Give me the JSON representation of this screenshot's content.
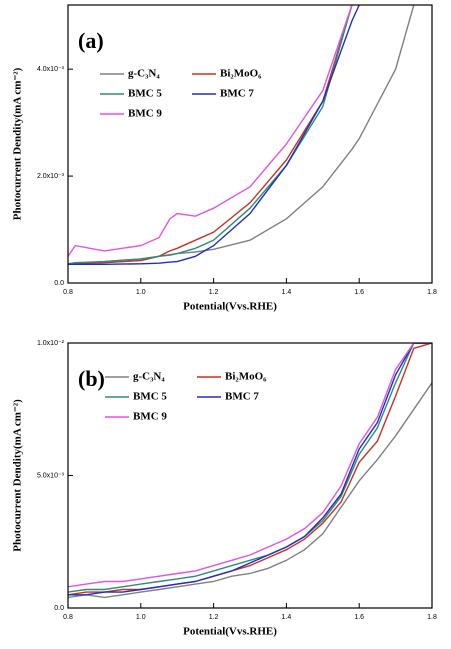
{
  "chart_data": [
    {
      "type": "line",
      "label": "(a)",
      "x_label": "Potential(Vvs.RHE)",
      "y_label": "Photocurrent Dendity(mA cm⁻²)",
      "xlim": [
        0.8,
        1.8
      ],
      "ylim": [
        0,
        0.0052
      ],
      "xticks": [
        0.8,
        {
          "value": 1,
          "label": "1.0"
        },
        1.2,
        1.4,
        1.6,
        1.8
      ],
      "yticks": [
        {
          "value": 0,
          "label": "0.0"
        },
        {
          "value": 0.002,
          "label": "2.0x10⁻³"
        },
        {
          "value": 0.004,
          "label": "4.0x10⁻³"
        }
      ],
      "x": [
        0.8,
        0.82,
        0.9,
        1.0,
        1.05,
        1.08,
        1.1,
        1.15,
        1.2,
        1.3,
        1.4,
        1.5,
        1.58,
        1.6,
        1.7,
        1.75
      ],
      "series": [
        {
          "name": "g-C₃N₄",
          "color": "#808080",
          "values": [
            0.00035,
            0.00036,
            0.0004,
            0.00045,
            0.0005,
            0.00052,
            0.00055,
            0.00058,
            0.00063,
            0.0008,
            0.0012,
            0.0018,
            0.0025,
            0.0027,
            0.004,
            0.0052
          ]
        },
        {
          "name": "Bi₂MoO₆",
          "color": "#c8321e",
          "values": [
            0.00035,
            0.00036,
            0.00038,
            0.00042,
            0.0005,
            0.0006,
            0.00065,
            0.0008,
            0.00095,
            0.0015,
            0.0023,
            0.0034,
            0.0052,
            null,
            null,
            null
          ]
        },
        {
          "name": "BMC 5",
          "color": "#2e8b7a",
          "values": [
            0.00036,
            0.00038,
            0.0004,
            0.00045,
            0.0005,
            0.00053,
            0.00055,
            0.00065,
            0.0008,
            0.0014,
            0.0022,
            0.0033,
            0.0052,
            null,
            null,
            null
          ]
        },
        {
          "name": "BMC 7",
          "color": "#1f2fbf",
          "values": [
            0.00035,
            0.00035,
            0.00035,
            0.00036,
            0.00037,
            0.00039,
            0.0004,
            0.0005,
            0.0007,
            0.0013,
            0.0022,
            0.0034,
            0.0049,
            0.0052,
            null,
            null
          ]
        },
        {
          "name": "BMC 9",
          "color": "#e055e0",
          "values": [
            0.0005,
            0.0007,
            0.0006,
            0.0007,
            0.00085,
            0.0012,
            0.0013,
            0.00125,
            0.0014,
            0.0018,
            0.0026,
            0.0036,
            0.0052,
            null,
            null,
            null
          ]
        }
      ]
    },
    {
      "type": "line",
      "label": "(b)",
      "x_label": "Potential(Vvs.RHE)",
      "y_label": "Photocurrent Dendity(mA cm⁻²)",
      "xlim": [
        0.8,
        1.8
      ],
      "ylim": [
        0,
        0.01
      ],
      "xticks": [
        0.8,
        {
          "value": 1,
          "label": "1.0"
        },
        1.2,
        1.4,
        1.6,
        1.8
      ],
      "yticks": [
        {
          "value": 0,
          "label": "0.0"
        },
        {
          "value": 0.005,
          "label": "5.0x10⁻³"
        },
        {
          "value": 0.01,
          "label": "1.0x10⁻²"
        }
      ],
      "x": [
        0.8,
        0.85,
        0.9,
        0.95,
        1.0,
        1.05,
        1.1,
        1.15,
        1.2,
        1.25,
        1.3,
        1.35,
        1.4,
        1.45,
        1.5,
        1.55,
        1.6,
        1.65,
        1.7,
        1.75,
        1.8
      ],
      "series": [
        {
          "name": "g-C₃N₄",
          "color": "#808080",
          "values": [
            0.0004,
            0.0005,
            0.0004,
            0.0005,
            0.0006,
            0.0007,
            0.0008,
            0.0009,
            0.001,
            0.0012,
            0.0013,
            0.0015,
            0.0018,
            0.0022,
            0.0028,
            0.0038,
            0.0048,
            0.0056,
            0.0065,
            0.0075,
            0.0085
          ]
        },
        {
          "name": "Bi₂MoO₆",
          "color": "#c8321e",
          "values": [
            0.0005,
            0.0006,
            0.0006,
            0.0007,
            0.0007,
            0.0008,
            0.0009,
            0.001,
            0.0012,
            0.0014,
            0.0016,
            0.0019,
            0.0022,
            0.0026,
            0.0032,
            0.004,
            0.0055,
            0.0063,
            0.008,
            0.0098,
            0.01
          ]
        },
        {
          "name": "BMC 5",
          "color": "#2e8b7a",
          "values": [
            0.0006,
            0.0007,
            0.0007,
            0.0008,
            0.0009,
            0.001,
            0.0011,
            0.0012,
            0.0014,
            0.0016,
            0.0018,
            0.002,
            0.0023,
            0.0027,
            0.0033,
            0.0042,
            0.0058,
            0.0068,
            0.0085,
            0.01,
            0.01
          ]
        },
        {
          "name": "BMC 7",
          "color": "#1f2fbf",
          "values": [
            0.0005,
            0.0005,
            0.0006,
            0.0006,
            0.0007,
            0.0008,
            0.0009,
            0.001,
            0.0012,
            0.0014,
            0.0017,
            0.002,
            0.0023,
            0.0027,
            0.0034,
            0.0043,
            0.006,
            0.007,
            0.0088,
            0.01,
            0.01
          ]
        },
        {
          "name": "BMC 9",
          "color": "#e055e0",
          "values": [
            0.0008,
            0.0009,
            0.001,
            0.001,
            0.0011,
            0.0012,
            0.0013,
            0.0014,
            0.0016,
            0.0018,
            0.002,
            0.0023,
            0.0026,
            0.003,
            0.0036,
            0.0046,
            0.0062,
            0.0072,
            0.009,
            0.01,
            0.01
          ]
        }
      ]
    }
  ]
}
